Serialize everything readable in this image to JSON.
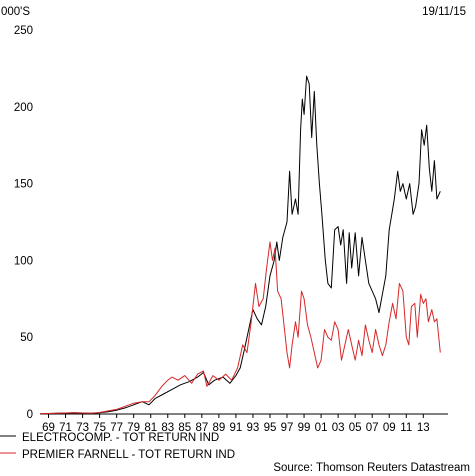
{
  "header": {
    "units": "000'S",
    "date": "19/11/15"
  },
  "source": "Source: Thomson Reuters Datastream",
  "chart_data": {
    "type": "line",
    "ylim": [
      0,
      250
    ],
    "y_ticks": [
      0,
      50,
      100,
      150,
      200,
      250
    ],
    "x_tick_labels": [
      "69",
      "71",
      "73",
      "75",
      "77",
      "79",
      "81",
      "83",
      "85",
      "87",
      "89",
      "91",
      "93",
      "95",
      "97",
      "99",
      "01",
      "03",
      "05",
      "07",
      "09",
      "11",
      "13"
    ],
    "x_tick_years": [
      1969,
      1971,
      1973,
      1975,
      1977,
      1979,
      1981,
      1983,
      1985,
      1987,
      1989,
      1991,
      1993,
      1995,
      1997,
      1999,
      2001,
      2003,
      2005,
      2007,
      2009,
      2011,
      2013
    ],
    "xlim": [
      1968,
      2015.9
    ],
    "series": [
      {
        "name": "ELECTROCOMP. - TOT RETURN IND",
        "color": "#000000",
        "points": [
          [
            1968.0,
            0.2
          ],
          [
            1970,
            0.5
          ],
          [
            1972,
            0.8
          ],
          [
            1974,
            0.5
          ],
          [
            1975,
            0.8
          ],
          [
            1976,
            1.5
          ],
          [
            1977,
            2.5
          ],
          [
            1978,
            4
          ],
          [
            1979,
            6
          ],
          [
            1980,
            8
          ],
          [
            1980.8,
            6
          ],
          [
            1981.5,
            10
          ],
          [
            1982.5,
            13
          ],
          [
            1983.5,
            16
          ],
          [
            1984.5,
            19
          ],
          [
            1985.5,
            21
          ],
          [
            1986.5,
            24
          ],
          [
            1987.2,
            27
          ],
          [
            1987.8,
            19
          ],
          [
            1988.5,
            22
          ],
          [
            1989.5,
            24
          ],
          [
            1990.3,
            20
          ],
          [
            1991,
            25
          ],
          [
            1991.5,
            30
          ],
          [
            1992,
            42
          ],
          [
            1992.5,
            55
          ],
          [
            1993,
            68
          ],
          [
            1993.5,
            62
          ],
          [
            1994,
            58
          ],
          [
            1994.5,
            70
          ],
          [
            1995,
            90
          ],
          [
            1995.5,
            100
          ],
          [
            1995.8,
            112
          ],
          [
            1996.1,
            100
          ],
          [
            1996.5,
            115
          ],
          [
            1997,
            125
          ],
          [
            1997.3,
            158
          ],
          [
            1997.6,
            130
          ],
          [
            1998,
            140
          ],
          [
            1998.3,
            130
          ],
          [
            1998.6,
            185
          ],
          [
            1998.8,
            205
          ],
          [
            1999.0,
            195
          ],
          [
            1999.3,
            220
          ],
          [
            1999.6,
            215
          ],
          [
            1999.9,
            180
          ],
          [
            2000.2,
            210
          ],
          [
            2000.5,
            175
          ],
          [
            2000.8,
            150
          ],
          [
            2001.1,
            130
          ],
          [
            2001.5,
            100
          ],
          [
            2001.8,
            85
          ],
          [
            2002.2,
            82
          ],
          [
            2002.6,
            120
          ],
          [
            2003,
            122
          ],
          [
            2003.3,
            110
          ],
          [
            2003.6,
            120
          ],
          [
            2004,
            85
          ],
          [
            2004.3,
            118
          ],
          [
            2004.6,
            95
          ],
          [
            2005,
            118
          ],
          [
            2005.4,
            90
          ],
          [
            2005.8,
            115
          ],
          [
            2006.2,
            100
          ],
          [
            2006.6,
            85
          ],
          [
            2007,
            80
          ],
          [
            2007.4,
            75
          ],
          [
            2007.8,
            66
          ],
          [
            2008.2,
            78
          ],
          [
            2008.6,
            90
          ],
          [
            2009,
            120
          ],
          [
            2009.3,
            130
          ],
          [
            2009.6,
            140
          ],
          [
            2010,
            158
          ],
          [
            2010.3,
            145
          ],
          [
            2010.6,
            150
          ],
          [
            2011,
            140
          ],
          [
            2011.4,
            150
          ],
          [
            2011.8,
            130
          ],
          [
            2012.1,
            135
          ],
          [
            2012.5,
            150
          ],
          [
            2012.8,
            185
          ],
          [
            2013.1,
            175
          ],
          [
            2013.4,
            188
          ],
          [
            2013.7,
            160
          ],
          [
            2014.0,
            145
          ],
          [
            2014.3,
            165
          ],
          [
            2014.6,
            140
          ],
          [
            2015.0,
            145
          ]
        ]
      },
      {
        "name": "PREMIER FARNELL - TOT RETURN IND",
        "color": "#d62728",
        "points": [
          [
            1968.0,
            0.2
          ],
          [
            1970,
            0.5
          ],
          [
            1972,
            0.8
          ],
          [
            1974,
            0.5
          ],
          [
            1975,
            1
          ],
          [
            1976,
            2
          ],
          [
            1977,
            3
          ],
          [
            1978,
            5
          ],
          [
            1979,
            7
          ],
          [
            1980,
            8
          ],
          [
            1980.8,
            8
          ],
          [
            1981.5,
            12
          ],
          [
            1982.3,
            18
          ],
          [
            1983,
            22
          ],
          [
            1983.5,
            24
          ],
          [
            1984.2,
            22
          ],
          [
            1985,
            25
          ],
          [
            1985.8,
            20
          ],
          [
            1986.5,
            26
          ],
          [
            1987.2,
            28
          ],
          [
            1987.6,
            18
          ],
          [
            1988.3,
            25
          ],
          [
            1989,
            22
          ],
          [
            1989.8,
            26
          ],
          [
            1990.5,
            22
          ],
          [
            1991.2,
            30
          ],
          [
            1991.8,
            45
          ],
          [
            1992.3,
            40
          ],
          [
            1992.8,
            60
          ],
          [
            1993.3,
            85
          ],
          [
            1993.7,
            70
          ],
          [
            1994.2,
            75
          ],
          [
            1994.6,
            95
          ],
          [
            1995.0,
            112
          ],
          [
            1995.3,
            100
          ],
          [
            1995.6,
            108
          ],
          [
            1995.9,
            80
          ],
          [
            1996.3,
            75
          ],
          [
            1996.7,
            55
          ],
          [
            1997.0,
            40
          ],
          [
            1997.3,
            30
          ],
          [
            1997.6,
            45
          ],
          [
            1998.0,
            60
          ],
          [
            1998.3,
            50
          ],
          [
            1998.7,
            80
          ],
          [
            1999.0,
            75
          ],
          [
            1999.4,
            58
          ],
          [
            1999.8,
            50
          ],
          [
            2000.2,
            40
          ],
          [
            2000.6,
            30
          ],
          [
            2001.0,
            35
          ],
          [
            2001.4,
            55
          ],
          [
            2001.8,
            50
          ],
          [
            2002.2,
            48
          ],
          [
            2002.6,
            60
          ],
          [
            2003.0,
            55
          ],
          [
            2003.4,
            35
          ],
          [
            2003.8,
            45
          ],
          [
            2004.2,
            55
          ],
          [
            2004.6,
            45
          ],
          [
            2005.0,
            35
          ],
          [
            2005.4,
            48
          ],
          [
            2005.8,
            38
          ],
          [
            2006.2,
            58
          ],
          [
            2006.6,
            48
          ],
          [
            2007.0,
            40
          ],
          [
            2007.4,
            55
          ],
          [
            2007.8,
            45
          ],
          [
            2008.2,
            38
          ],
          [
            2008.6,
            45
          ],
          [
            2009.0,
            60
          ],
          [
            2009.4,
            72
          ],
          [
            2009.8,
            62
          ],
          [
            2010.2,
            85
          ],
          [
            2010.6,
            80
          ],
          [
            2011.0,
            50
          ],
          [
            2011.3,
            45
          ],
          [
            2011.6,
            70
          ],
          [
            2012.0,
            72
          ],
          [
            2012.3,
            50
          ],
          [
            2012.7,
            78
          ],
          [
            2013.0,
            72
          ],
          [
            2013.3,
            75
          ],
          [
            2013.6,
            60
          ],
          [
            2014.0,
            68
          ],
          [
            2014.3,
            60
          ],
          [
            2014.6,
            62
          ],
          [
            2015.0,
            40
          ]
        ]
      }
    ]
  }
}
